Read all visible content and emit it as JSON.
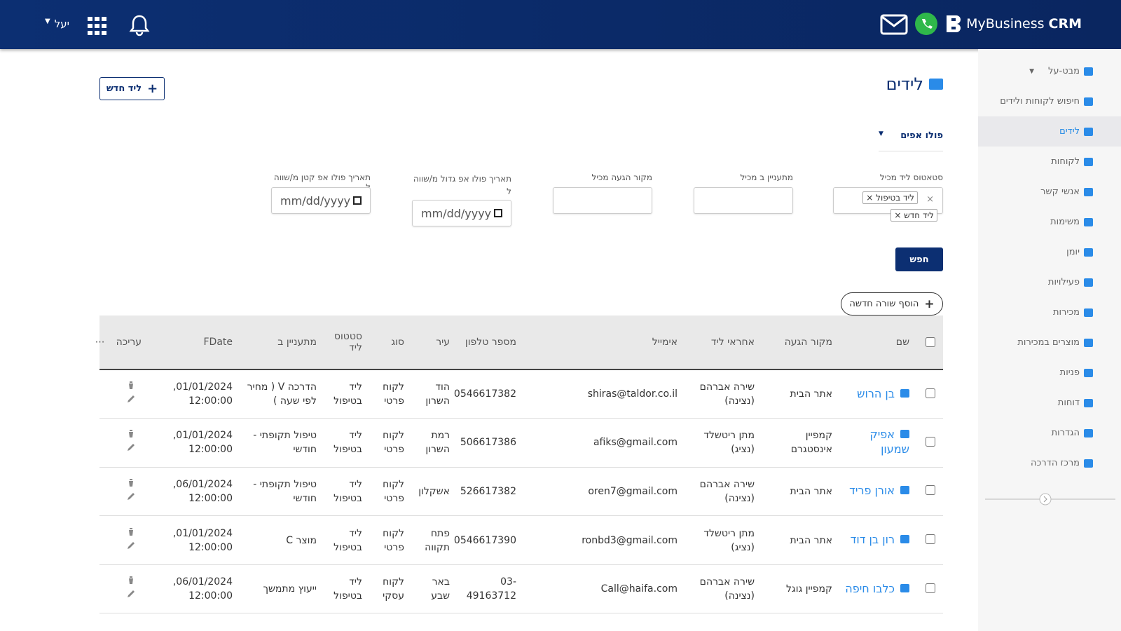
{
  "header": {
    "brand": "MyBusiness",
    "brand_suffix": "CRM",
    "user": "יעל"
  },
  "sidebar": {
    "items": [
      "מבט-על",
      "חיפוש לקוחות ולידים",
      "לידים",
      "לקוחות",
      "אנשי קשר",
      "משימות",
      "יומן",
      "פעילויות",
      "מכירות",
      "מוצרים במכירות",
      "פניות",
      "דוחות",
      "הגדרות",
      "מרכז הדרכה"
    ]
  },
  "page": {
    "title": "לידים",
    "new_lead_button": "ליד חדש",
    "followups_toggle": "פולו אפים",
    "filters": [
      {
        "label": "סטאטוס ליד מכיל",
        "tags": [
          "ליד בטיפול",
          "ליד חדש"
        ]
      },
      {
        "label": "מתעניין ב מכיל"
      },
      {
        "label": "מקור הגעה מכיל"
      },
      {
        "label": "תאריך פולו אפ גדול מ/שווה ל",
        "placeholder": "mm/dd/yyyy"
      },
      {
        "label": "תאריך פולו אפ קטן מ/שווה ל",
        "placeholder": "mm/dd/yyyy"
      }
    ],
    "search_button": "חפש",
    "add_row_button": "הוסף שורה חדשה"
  },
  "table": {
    "headers": [
      "שם",
      "מקור הגעה",
      "אחראי ליד",
      "אימייל",
      "מספר טלפון",
      "עיר",
      "סוג",
      "סטטוס ליד",
      "מתעניין ב",
      "FDate",
      "עריכה"
    ],
    "rows": [
      [
        "בן הרוש",
        "אתר הבית",
        "שירה אברהם (נצינה)",
        "shiras@taldor.co.il",
        "0546617382",
        "הוד השרון",
        "לקוח פרטי",
        "ליד בטיפול",
        "הדרכה V ( מחיר לפי שעה )",
        "01/01/2024, 12:00:00"
      ],
      [
        "אפיק שמעון",
        "קמפיין אינסטגרם",
        "מתן ריטשלד (נציג)",
        "afiks@gmail.com",
        "506617386",
        "רמת השרון",
        "לקוח פרטי",
        "ליד בטיפול",
        "טיפול תקופתי - חודשי",
        "01/01/2024, 12:00:00"
      ],
      [
        "אורן פריד",
        "אתר הבית",
        "שירה אברהם (נצינה)",
        "oren7@gmail.com",
        "526617382",
        "אשקלון",
        "לקוח פרטי",
        "ליד בטיפול",
        "טיפול תקופתי - חודשי",
        "06/01/2024, 12:00:00"
      ],
      [
        "רון בן דוד",
        "אתר הבית",
        "מתן ריטשלד (נציג)",
        "ronbd3@gmail.com",
        "0546617390",
        "פתח תקווה",
        "לקוח פרטי",
        "ליד בטיפול",
        "מוצר C",
        "01/01/2024, 12:00:00"
      ],
      [
        "כלבו חיפה",
        "קמפיין גוגל",
        "שירה אברהם (נצינה)",
        "Call@haifa.com",
        "03-49163712",
        "באר שבע",
        "לקוח עסקי",
        "ליד בטיפול",
        "ייעוץ מתמשך",
        "06/01/2024, 12:00:00"
      ]
    ]
  }
}
